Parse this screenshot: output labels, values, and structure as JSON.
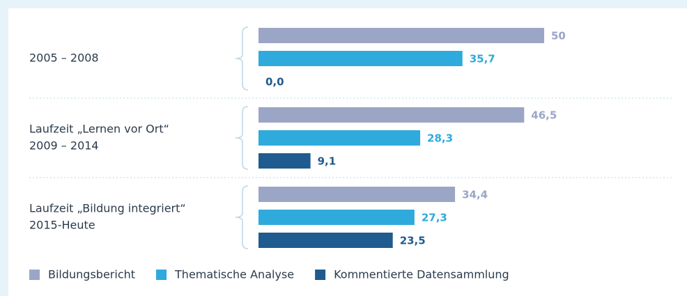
{
  "chart_data": {
    "type": "hbar",
    "categories": [
      [
        "2005 – 2008"
      ],
      [
        "Laufzeit „Lernen vor Ort“",
        "2009 – 2014"
      ],
      [
        "Laufzeit „Bildung integriert“",
        "2015-Heute"
      ]
    ],
    "series": [
      {
        "name": "Bildungsbericht",
        "color": "#9ba6c6",
        "values": [
          50,
          46.5,
          34.4
        ],
        "value_labels": [
          "50",
          "46,5",
          "34,4"
        ]
      },
      {
        "name": "Thematische Analyse",
        "color": "#2eaadc",
        "values": [
          35.7,
          28.3,
          27.3
        ],
        "value_labels": [
          "35,7",
          "28,3",
          "27,3"
        ]
      },
      {
        "name": "Kommentierte Datensammlung",
        "color": "#1f5b8e",
        "values": [
          0,
          9.1,
          23.5
        ],
        "value_labels": [
          "0,0",
          "9,1",
          "23,5"
        ]
      }
    ],
    "legend": "bottom"
  }
}
